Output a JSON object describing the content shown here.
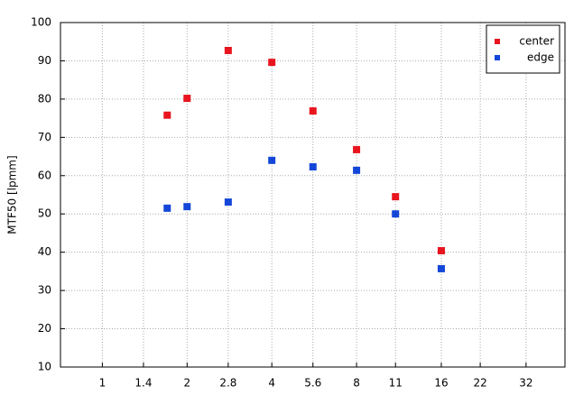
{
  "chart_data": {
    "type": "scatter",
    "ylabel": "MTF50 [lpmm]",
    "xscale": "log",
    "xlim": [
      0.71,
      44
    ],
    "xticks": [
      1,
      1.4,
      2,
      2.8,
      4,
      5.6,
      8,
      11,
      16,
      22,
      32
    ],
    "ylim": [
      10,
      100
    ],
    "yticks": [
      10,
      20,
      30,
      40,
      50,
      60,
      70,
      80,
      90,
      100
    ],
    "grid": true,
    "legend": "upper right",
    "series": [
      {
        "name": "center",
        "color": "#e8141e",
        "x": [
          1.7,
          2,
          2.8,
          4,
          5.6,
          8,
          11,
          16
        ],
        "values": [
          75.8,
          80.2,
          92.7,
          89.6,
          76.9,
          66.8,
          54.5,
          40.4
        ]
      },
      {
        "name": "edge",
        "color": "#1446d8",
        "x": [
          1.7,
          2,
          2.8,
          4,
          5.6,
          8,
          11,
          16
        ],
        "values": [
          51.5,
          51.9,
          53.1,
          64,
          62.3,
          61.4,
          50,
          35.7
        ]
      }
    ]
  }
}
